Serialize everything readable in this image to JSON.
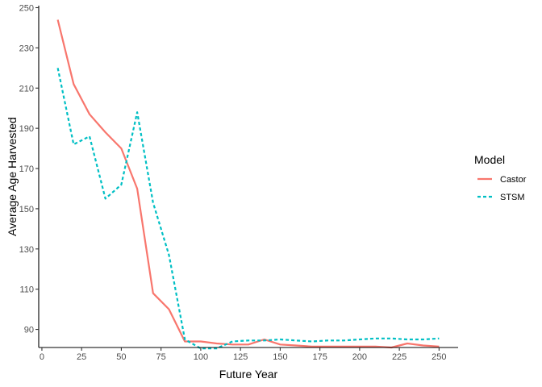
{
  "chart_data": {
    "type": "line",
    "xlabel": "Future Year",
    "ylabel": "Average Age Harvested",
    "xlim": [
      -2,
      262
    ],
    "ylim": [
      81,
      251
    ],
    "x_ticks": [
      0,
      25,
      50,
      75,
      100,
      125,
      150,
      175,
      200,
      225,
      250
    ],
    "y_ticks": [
      90,
      110,
      130,
      150,
      170,
      190,
      210,
      230,
      250
    ],
    "grid": false,
    "legend": {
      "title": "Model",
      "position": "right"
    },
    "series": [
      {
        "name": "Castor",
        "color": "#F8766D",
        "dash": "solid",
        "points": [
          [
            10,
            244
          ],
          [
            20,
            212
          ],
          [
            30,
            197
          ],
          [
            40,
            188
          ],
          [
            50,
            180
          ],
          [
            60,
            160
          ],
          [
            70,
            108
          ],
          [
            80,
            100
          ],
          [
            90,
            84
          ],
          [
            100,
            84
          ],
          [
            110,
            83
          ],
          [
            120,
            82.5
          ],
          [
            130,
            82.5
          ],
          [
            140,
            85
          ],
          [
            150,
            82.5
          ],
          [
            160,
            82
          ],
          [
            170,
            81.5
          ],
          [
            180,
            81.5
          ],
          [
            190,
            81.5
          ],
          [
            200,
            81.5
          ],
          [
            210,
            81.5
          ],
          [
            220,
            81
          ],
          [
            230,
            83
          ],
          [
            240,
            82
          ],
          [
            250,
            81.5
          ]
        ]
      },
      {
        "name": "STSM",
        "color": "#00BFC4",
        "dash": "dashed",
        "points": [
          [
            10,
            220
          ],
          [
            20,
            182
          ],
          [
            30,
            186
          ],
          [
            40,
            155
          ],
          [
            50,
            162
          ],
          [
            60,
            198
          ],
          [
            70,
            153
          ],
          [
            80,
            127
          ],
          [
            90,
            85
          ],
          [
            100,
            80.5
          ],
          [
            110,
            80.5
          ],
          [
            120,
            84
          ],
          [
            130,
            84.5
          ],
          [
            140,
            84.5
          ],
          [
            150,
            85
          ],
          [
            160,
            84.5
          ],
          [
            170,
            84
          ],
          [
            180,
            84.5
          ],
          [
            190,
            84.5
          ],
          [
            200,
            85
          ],
          [
            210,
            85.5
          ],
          [
            220,
            85.5
          ],
          [
            230,
            85
          ],
          [
            240,
            85
          ],
          [
            250,
            85.5
          ]
        ]
      }
    ]
  }
}
